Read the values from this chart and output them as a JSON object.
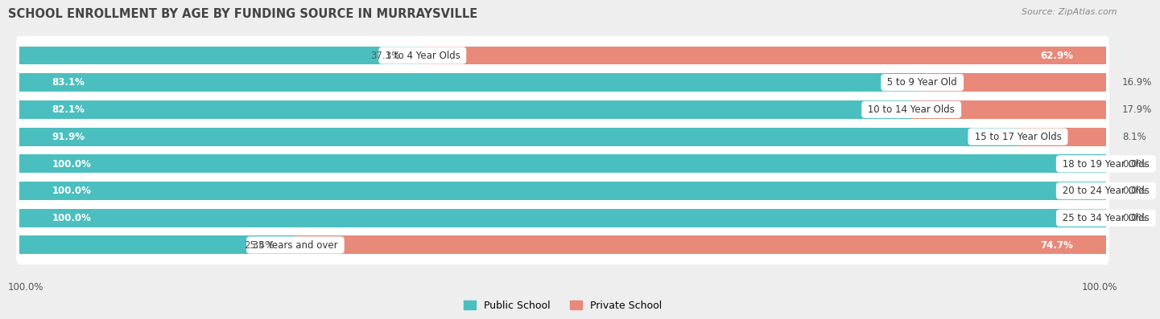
{
  "title": "SCHOOL ENROLLMENT BY AGE BY FUNDING SOURCE IN MURRAYSVILLE",
  "source": "Source: ZipAtlas.com",
  "categories": [
    "3 to 4 Year Olds",
    "5 to 9 Year Old",
    "10 to 14 Year Olds",
    "15 to 17 Year Olds",
    "18 to 19 Year Olds",
    "20 to 24 Year Olds",
    "25 to 34 Year Olds",
    "35 Years and over"
  ],
  "public_values": [
    37.1,
    83.1,
    82.1,
    91.9,
    100.0,
    100.0,
    100.0,
    25.4
  ],
  "private_values": [
    62.9,
    16.9,
    17.9,
    8.1,
    0.0,
    0.0,
    0.0,
    74.7
  ],
  "public_color": "#4BBFBF",
  "private_color": "#E8897A",
  "row_bg_color": "#ffffff",
  "bg_color": "#eeeeee",
  "label_fontsize": 8.5,
  "title_fontsize": 10.5,
  "source_fontsize": 8,
  "legend_fontsize": 9,
  "bottom_left_label": "100.0%",
  "bottom_right_label": "100.0%",
  "bar_height": 0.68,
  "row_padding": 0.16
}
